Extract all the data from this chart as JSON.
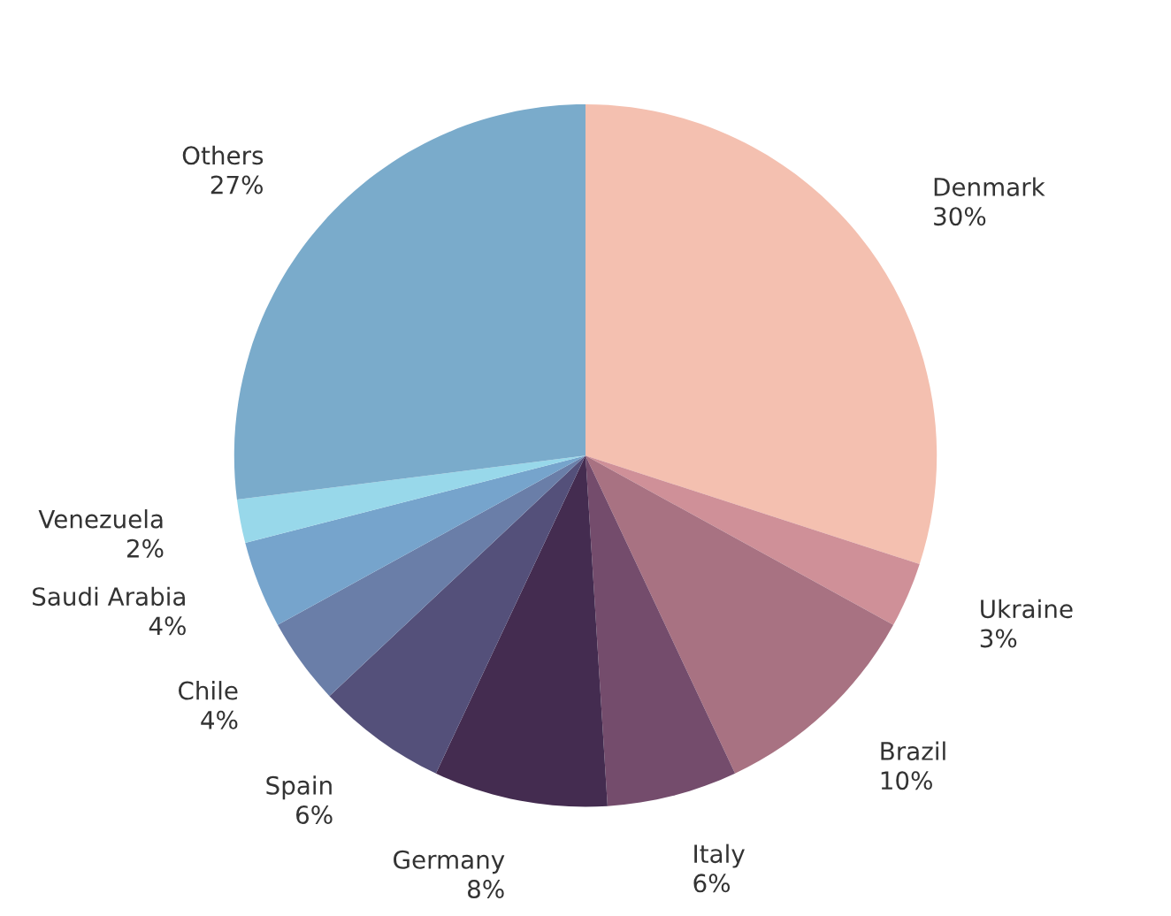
{
  "chart_data": {
    "type": "pie",
    "categories": [
      "Denmark",
      "Ukraine",
      "Brazil",
      "Italy",
      "Germany",
      "Spain",
      "Chile",
      "Saudi Arabia",
      "Venezuela",
      "Others"
    ],
    "values": [
      30,
      3,
      10,
      6,
      8,
      6,
      4,
      4,
      2,
      27
    ],
    "value_labels": [
      "30%",
      "3%",
      "10%",
      "6%",
      "8%",
      "6%",
      "4%",
      "4%",
      "2%",
      "27%"
    ],
    "colors": [
      "#f4c0b0",
      "#cf9098",
      "#a87282",
      "#744c6c",
      "#442c50",
      "#54507a",
      "#6a7ea8",
      "#76a4cc",
      "#98d8ea",
      "#7aabcb"
    ]
  }
}
